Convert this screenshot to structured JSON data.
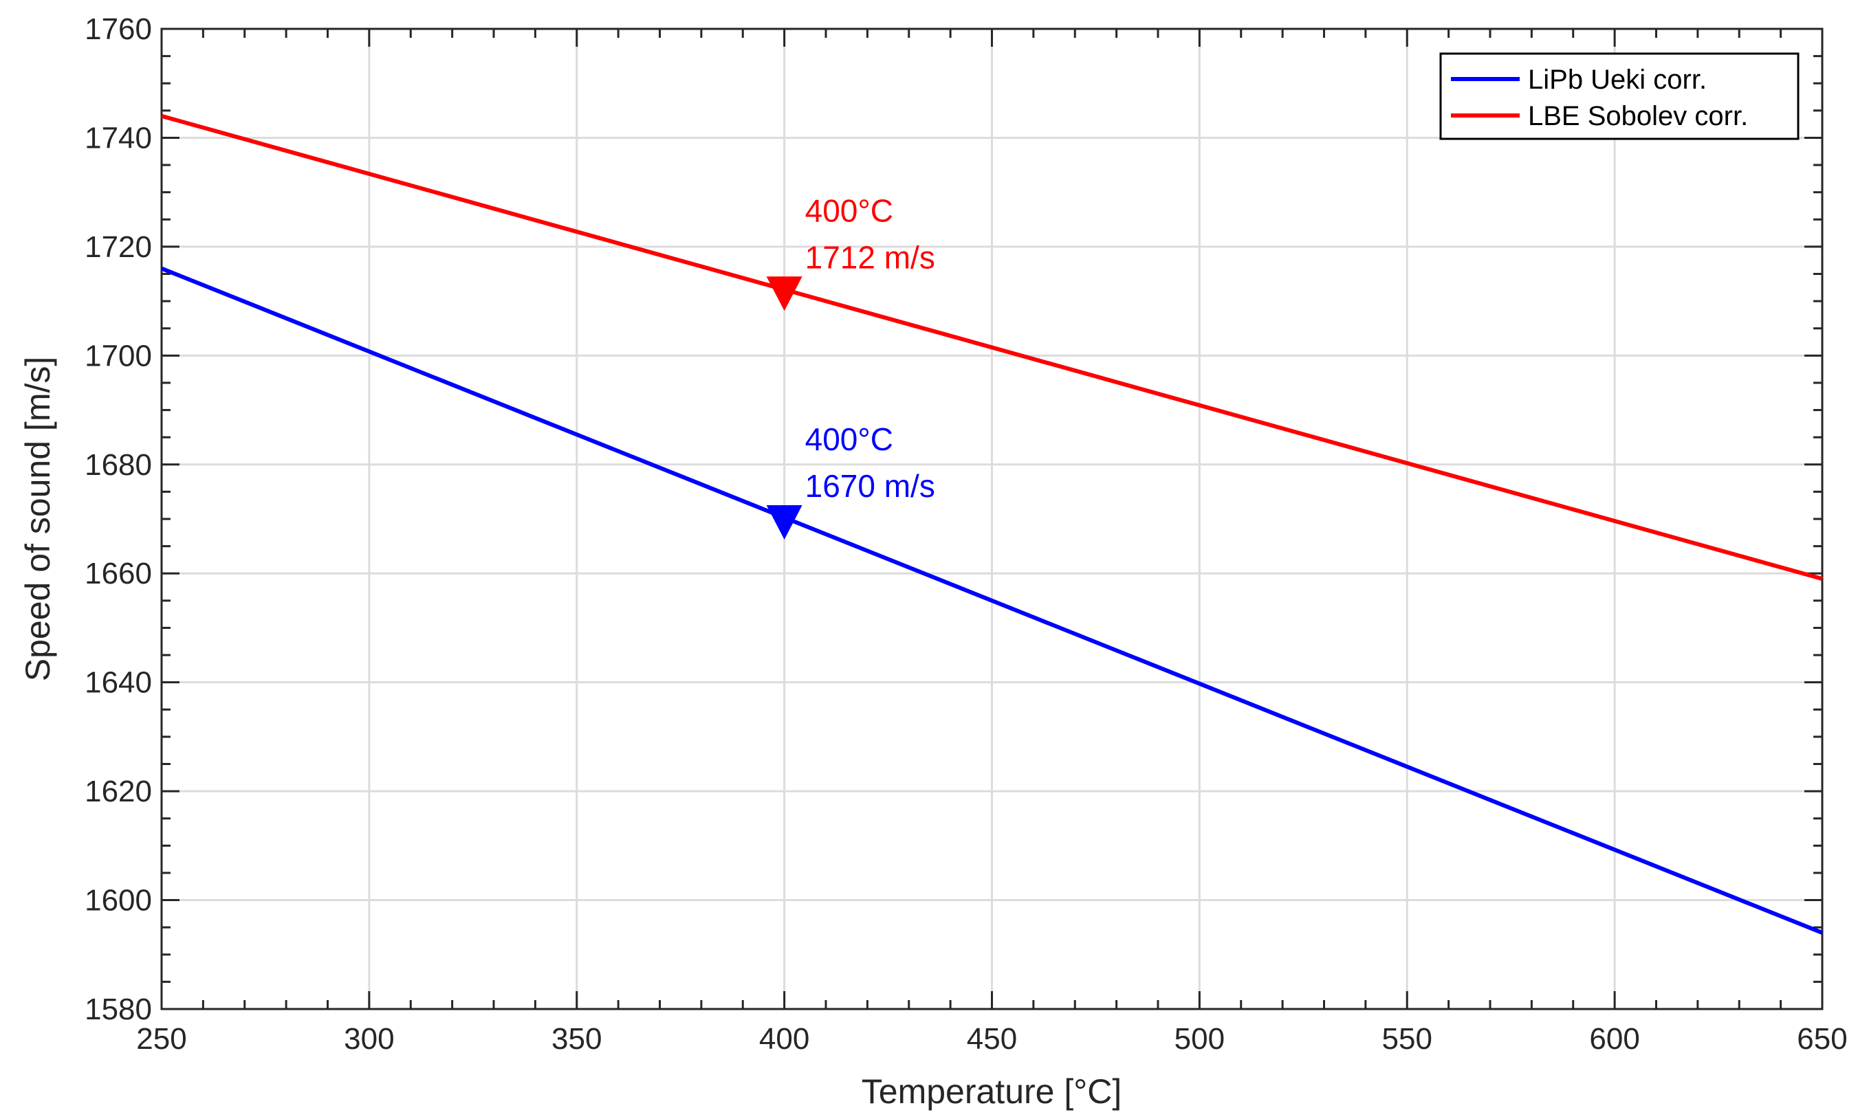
{
  "chart_data": {
    "type": "line",
    "xlabel": "Temperature [°C]",
    "ylabel": "Speed of sound [m/s]",
    "xlim": [
      250,
      650
    ],
    "ylim": [
      1580,
      1760
    ],
    "x_ticks": [
      250,
      300,
      350,
      400,
      450,
      500,
      550,
      600,
      650
    ],
    "y_ticks": [
      1580,
      1600,
      1620,
      1640,
      1660,
      1680,
      1700,
      1720,
      1740,
      1760
    ],
    "grid": true,
    "legend_position": "top-right",
    "series": [
      {
        "name": "LiPb Ueki corr.",
        "color": "#0000ff",
        "x": [
          250,
          650
        ],
        "y": [
          1716,
          1594
        ]
      },
      {
        "name": "LBE Sobolev corr.",
        "color": "#ff0000",
        "x": [
          250,
          650
        ],
        "y": [
          1744,
          1659
        ]
      }
    ],
    "markers": [
      {
        "series": "LBE Sobolev corr.",
        "x": 400,
        "y": 1712,
        "shape": "down-triangle",
        "color": "#ff0000",
        "label_lines": [
          "400°C",
          "1712 m/s"
        ]
      },
      {
        "series": "LiPb Ueki corr.",
        "x": 400,
        "y": 1670,
        "shape": "down-triangle",
        "color": "#0000ff",
        "label_lines": [
          "400°C",
          "1670 m/s"
        ]
      }
    ]
  }
}
